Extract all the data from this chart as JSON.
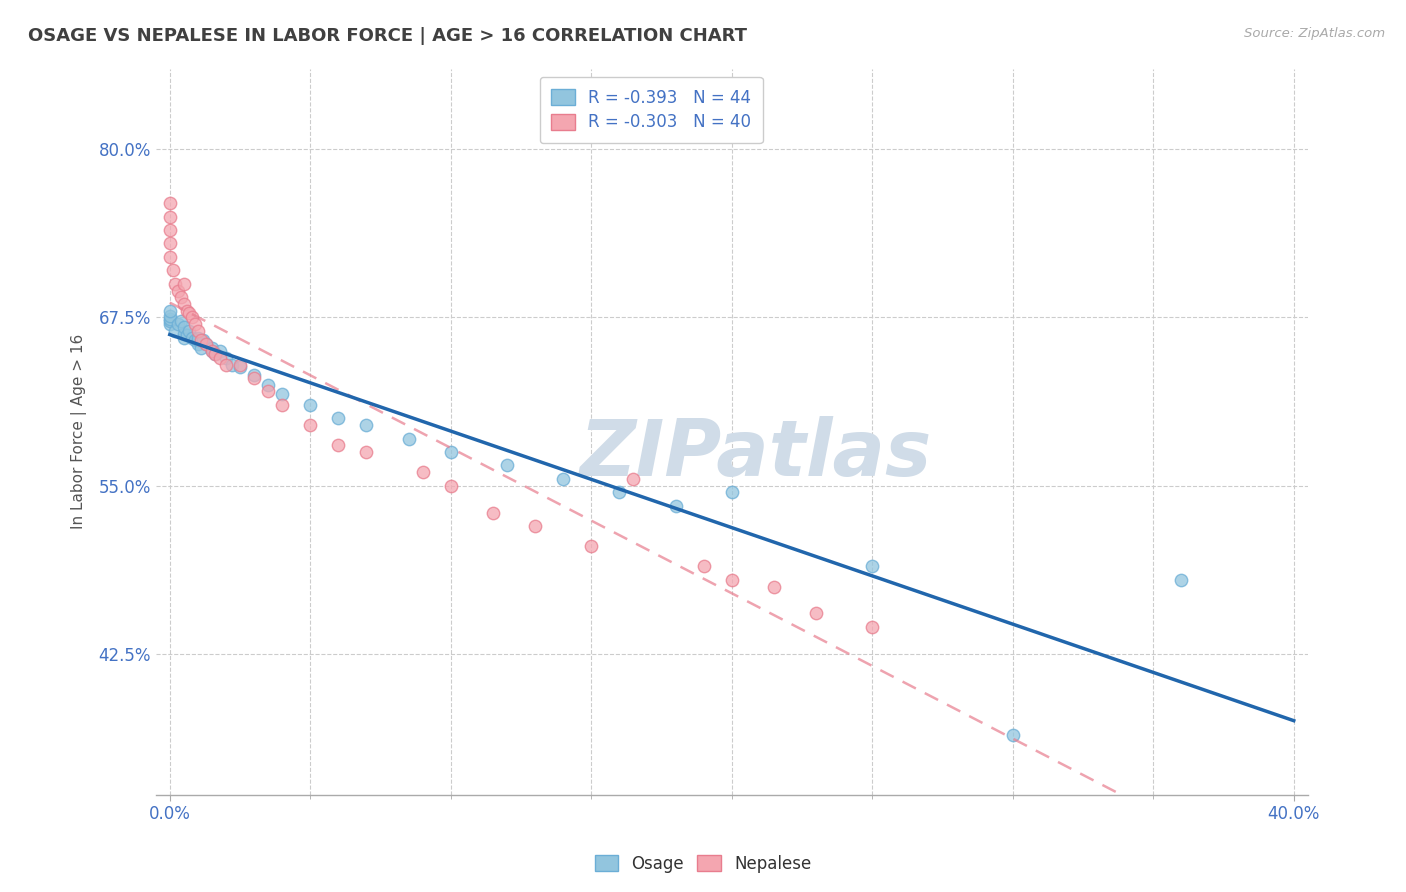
{
  "title": "OSAGE VS NEPALESE IN LABOR FORCE | AGE > 16 CORRELATION CHART",
  "source_text": "Source: ZipAtlas.com",
  "ylabel": "In Labor Force | Age > 16",
  "xlim": [
    -0.005,
    0.405
  ],
  "ylim": [
    0.32,
    0.86
  ],
  "ytick_labels": [
    "42.5%",
    "55.0%",
    "67.5%",
    "80.0%"
  ],
  "ytick_values": [
    0.425,
    0.55,
    0.675,
    0.8
  ],
  "xtick_labels": [
    "0.0%",
    "40.0%"
  ],
  "xtick_values": [
    0.0,
    0.4
  ],
  "osage_color": "#92c5de",
  "osage_edge_color": "#6baed6",
  "osage_line_color": "#2166ac",
  "nepalese_color": "#f4a6b0",
  "nepalese_edge_color": "#e87d8e",
  "nepalese_line_color": "#e87d8e",
  "background_color": "#ffffff",
  "grid_color": "#cccccc",
  "title_color": "#404040",
  "axis_label_color": "#4472c4",
  "legend_text_color": "#4472c4",
  "watermark_color": "#d0dce8",
  "watermark_text": "ZIPatlas",
  "osage_scatter_x": [
    0.0,
    0.0,
    0.0,
    0.0,
    0.0,
    0.002,
    0.003,
    0.004,
    0.005,
    0.005,
    0.005,
    0.006,
    0.007,
    0.008,
    0.009,
    0.01,
    0.01,
    0.01,
    0.011,
    0.012,
    0.013,
    0.015,
    0.015,
    0.016,
    0.018,
    0.02,
    0.022,
    0.025,
    0.03,
    0.035,
    0.04,
    0.05,
    0.06,
    0.07,
    0.085,
    0.1,
    0.12,
    0.14,
    0.16,
    0.18,
    0.2,
    0.25,
    0.3,
    0.36
  ],
  "osage_scatter_y": [
    0.67,
    0.672,
    0.674,
    0.676,
    0.68,
    0.665,
    0.67,
    0.672,
    0.66,
    0.663,
    0.668,
    0.662,
    0.665,
    0.66,
    0.658,
    0.655,
    0.658,
    0.66,
    0.652,
    0.658,
    0.655,
    0.65,
    0.652,
    0.648,
    0.65,
    0.645,
    0.64,
    0.638,
    0.632,
    0.625,
    0.618,
    0.61,
    0.6,
    0.595,
    0.585,
    0.575,
    0.565,
    0.555,
    0.545,
    0.535,
    0.545,
    0.49,
    0.365,
    0.48
  ],
  "nepalese_scatter_x": [
    0.0,
    0.0,
    0.0,
    0.0,
    0.0,
    0.001,
    0.002,
    0.003,
    0.004,
    0.005,
    0.005,
    0.006,
    0.007,
    0.008,
    0.009,
    0.01,
    0.011,
    0.013,
    0.015,
    0.016,
    0.018,
    0.02,
    0.025,
    0.03,
    0.035,
    0.04,
    0.05,
    0.06,
    0.07,
    0.09,
    0.1,
    0.115,
    0.13,
    0.15,
    0.165,
    0.19,
    0.2,
    0.215,
    0.23,
    0.25
  ],
  "nepalese_scatter_y": [
    0.72,
    0.73,
    0.74,
    0.75,
    0.76,
    0.71,
    0.7,
    0.695,
    0.69,
    0.685,
    0.7,
    0.68,
    0.678,
    0.675,
    0.67,
    0.665,
    0.658,
    0.655,
    0.65,
    0.648,
    0.645,
    0.64,
    0.64,
    0.63,
    0.62,
    0.61,
    0.595,
    0.58,
    0.575,
    0.56,
    0.55,
    0.53,
    0.52,
    0.505,
    0.555,
    0.49,
    0.48,
    0.475,
    0.455,
    0.445
  ]
}
